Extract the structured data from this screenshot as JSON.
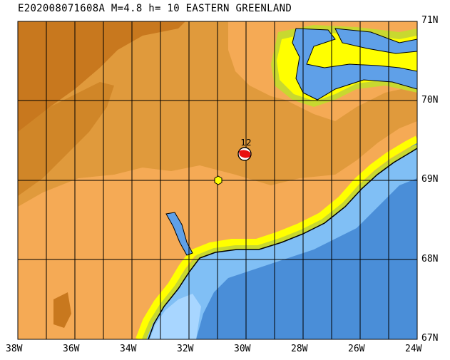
{
  "title": "E202008071608A M=4.8 h= 10 EASTERN GREENLAND",
  "lon_labels": [
    "38W",
    "36W",
    "34W",
    "32W",
    "30W",
    "28W",
    "26W",
    "24W"
  ],
  "lat_labels": [
    "71N",
    "70N",
    "69N",
    "68N",
    "67N"
  ],
  "event_label": "12",
  "colors": {
    "land_high": "#c8781e",
    "land_mid": "#e09a3c",
    "land_low": "#f5aa55",
    "coast_green": "#c8d830",
    "coast_yellow": "#ffff00",
    "sea_shelf": "#80bff5",
    "sea_deep": "#4a8ed8",
    "fjord": "#5fa0e8",
    "grid": "#000000",
    "beachball": "#e81010",
    "epicenter_marker": "#ffff00"
  }
}
